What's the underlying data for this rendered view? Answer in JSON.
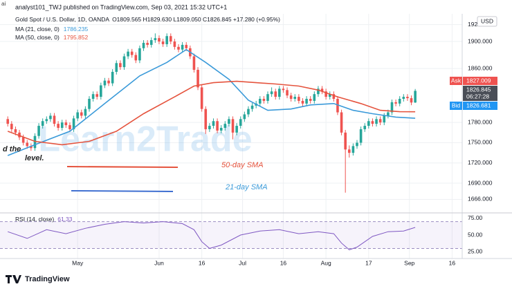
{
  "chart_data": {
    "type": "candlestick",
    "corner_text": "ai",
    "header": "analyst101_TWJ published on TradingView.com, Sep 03, 2021 15:32 UTC+1",
    "title": "Gold Spot / U.S. Dollar, 1D, OANDA",
    "ohlc_text": "O1809.565 H1829.630 L1809.050 C1826.845 +17.280 (+0.95%)",
    "currency": "USD",
    "watermark": "Learn2Trade",
    "annotations": [
      "50-day SMA",
      "21-day SMA",
      "d the",
      "level."
    ],
    "price_tags": {
      "ask_label": "Ask",
      "ask": "1827.009",
      "last": "1826.845",
      "countdown": "06:27:28",
      "bid_label": "Bid",
      "bid": "1826.681"
    },
    "up_color": "#26a69a",
    "down_color": "#ef5350",
    "xlim": [
      -2,
      117.1
    ],
    "xticks": [
      {
        "value": 18,
        "label": "May"
      },
      {
        "value": 39,
        "label": "Jun"
      },
      {
        "value": 50,
        "label": "16"
      },
      {
        "value": 60.5,
        "label": "Jul"
      },
      {
        "value": 71,
        "label": "16"
      },
      {
        "value": 82,
        "label": "Aug"
      },
      {
        "value": 93,
        "label": "17"
      },
      {
        "value": 103.5,
        "label": "Sep"
      },
      {
        "value": 114.5,
        "label": "16"
      }
    ],
    "ylim": [
      1646,
      1941
    ],
    "yticks": [
      {
        "value": 1925,
        "label": "1925.000"
      },
      {
        "value": 1900,
        "label": "1900.000"
      },
      {
        "value": 1860,
        "label": "1860.000"
      },
      {
        "value": 1780,
        "label": "1780.000"
      },
      {
        "value": 1750,
        "label": "1750.000"
      },
      {
        "value": 1720,
        "label": "1720.000"
      },
      {
        "value": 1690,
        "label": "1690.000"
      },
      {
        "value": 1666,
        "label": "1666.000"
      }
    ],
    "grid": true,
    "ohlc": [
      [
        1785,
        1789,
        1774,
        1778
      ],
      [
        1778,
        1782,
        1766,
        1770
      ],
      [
        1770,
        1774,
        1761,
        1765
      ],
      [
        1765,
        1769,
        1754,
        1758
      ],
      [
        1758,
        1762,
        1746,
        1750
      ],
      [
        1750,
        1754,
        1741,
        1745
      ],
      [
        1745,
        1749,
        1738,
        1742
      ],
      [
        1742,
        1764,
        1738,
        1760
      ],
      [
        1760,
        1779,
        1756,
        1775
      ],
      [
        1775,
        1786,
        1771,
        1782
      ],
      [
        1782,
        1789,
        1778,
        1785
      ],
      [
        1785,
        1794,
        1781,
        1790
      ],
      [
        1790,
        1794,
        1774,
        1778
      ],
      [
        1778,
        1782,
        1768,
        1772
      ],
      [
        1772,
        1784,
        1768,
        1780
      ],
      [
        1780,
        1784,
        1772,
        1776
      ],
      [
        1776,
        1780,
        1766,
        1770
      ],
      [
        1770,
        1790,
        1766,
        1786
      ],
      [
        1786,
        1799,
        1782,
        1795
      ],
      [
        1795,
        1799,
        1786,
        1790
      ],
      [
        1790,
        1804,
        1786,
        1800
      ],
      [
        1800,
        1819,
        1796,
        1815
      ],
      [
        1815,
        1826,
        1811,
        1822
      ],
      [
        1822,
        1826,
        1814,
        1818
      ],
      [
        1818,
        1839,
        1814,
        1835
      ],
      [
        1835,
        1846,
        1831,
        1842
      ],
      [
        1842,
        1846,
        1834,
        1838
      ],
      [
        1838,
        1859,
        1834,
        1855
      ],
      [
        1855,
        1872,
        1851,
        1868
      ],
      [
        1868,
        1872,
        1858,
        1862
      ],
      [
        1862,
        1882,
        1858,
        1878
      ],
      [
        1878,
        1889,
        1874,
        1885
      ],
      [
        1885,
        1889,
        1876,
        1880
      ],
      [
        1880,
        1884,
        1868,
        1872
      ],
      [
        1872,
        1894,
        1868,
        1890
      ],
      [
        1890,
        1902,
        1886,
        1898
      ],
      [
        1898,
        1902,
        1891,
        1895
      ],
      [
        1895,
        1906,
        1891,
        1902
      ],
      [
        1902,
        1912,
        1898,
        1905
      ],
      [
        1905,
        1909,
        1896,
        1900
      ],
      [
        1900,
        1904,
        1892,
        1896
      ],
      [
        1896,
        1912,
        1892,
        1908
      ],
      [
        1908,
        1912,
        1896,
        1900
      ],
      [
        1900,
        1904,
        1888,
        1892
      ],
      [
        1892,
        1896,
        1884,
        1888
      ],
      [
        1888,
        1899,
        1884,
        1895
      ],
      [
        1895,
        1899,
        1886,
        1890
      ],
      [
        1890,
        1894,
        1874,
        1878
      ],
      [
        1878,
        1882,
        1854,
        1858
      ],
      [
        1858,
        1862,
        1828,
        1832
      ],
      [
        1832,
        1836,
        1796,
        1800
      ],
      [
        1800,
        1804,
        1763,
        1770
      ],
      [
        1770,
        1779,
        1766,
        1775
      ],
      [
        1775,
        1786,
        1771,
        1782
      ],
      [
        1782,
        1786,
        1764,
        1768
      ],
      [
        1768,
        1776,
        1764,
        1772
      ],
      [
        1772,
        1782,
        1768,
        1778
      ],
      [
        1778,
        1789,
        1774,
        1785
      ],
      [
        1785,
        1789,
        1755,
        1765
      ],
      [
        1765,
        1779,
        1761,
        1775
      ],
      [
        1775,
        1789,
        1771,
        1785
      ],
      [
        1785,
        1796,
        1781,
        1792
      ],
      [
        1792,
        1804,
        1788,
        1800
      ],
      [
        1800,
        1809,
        1796,
        1805
      ],
      [
        1805,
        1812,
        1801,
        1808
      ],
      [
        1808,
        1819,
        1804,
        1815
      ],
      [
        1815,
        1819,
        1808,
        1812
      ],
      [
        1812,
        1826,
        1808,
        1822
      ],
      [
        1822,
        1832,
        1818,
        1826
      ],
      [
        1826,
        1830,
        1814,
        1818
      ],
      [
        1818,
        1834,
        1814,
        1830
      ],
      [
        1830,
        1834,
        1824,
        1828
      ],
      [
        1828,
        1832,
        1816,
        1820
      ],
      [
        1820,
        1824,
        1811,
        1815
      ],
      [
        1815,
        1822,
        1811,
        1818
      ],
      [
        1818,
        1822,
        1808,
        1812
      ],
      [
        1812,
        1816,
        1804,
        1808
      ],
      [
        1808,
        1819,
        1804,
        1815
      ],
      [
        1815,
        1819,
        1808,
        1812
      ],
      [
        1812,
        1826,
        1808,
        1822
      ],
      [
        1822,
        1834,
        1818,
        1830
      ],
      [
        1830,
        1834,
        1822,
        1826
      ],
      [
        1826,
        1830,
        1814,
        1818
      ],
      [
        1818,
        1826,
        1814,
        1822
      ],
      [
        1822,
        1826,
        1811,
        1815
      ],
      [
        1815,
        1819,
        1791,
        1795
      ],
      [
        1795,
        1799,
        1761,
        1765
      ],
      [
        1765,
        1769,
        1676,
        1740
      ],
      [
        1740,
        1746,
        1728,
        1735
      ],
      [
        1735,
        1749,
        1731,
        1745
      ],
      [
        1745,
        1754,
        1741,
        1750
      ],
      [
        1750,
        1774,
        1746,
        1770
      ],
      [
        1770,
        1779,
        1766,
        1775
      ],
      [
        1775,
        1786,
        1771,
        1782
      ],
      [
        1782,
        1786,
        1774,
        1778
      ],
      [
        1778,
        1789,
        1774,
        1785
      ],
      [
        1785,
        1789,
        1776,
        1780
      ],
      [
        1780,
        1794,
        1776,
        1790
      ],
      [
        1790,
        1799,
        1786,
        1795
      ],
      [
        1795,
        1814,
        1791,
        1810
      ],
      [
        1810,
        1814,
        1804,
        1808
      ],
      [
        1808,
        1819,
        1804,
        1815
      ],
      [
        1815,
        1822,
        1811,
        1818
      ],
      [
        1818,
        1822,
        1812,
        1816
      ],
      [
        1816,
        1820,
        1805.6,
        1809.565
      ],
      [
        1809.565,
        1829.63,
        1809.05,
        1826.845
      ]
    ],
    "series": [
      {
        "name": "MA (21, close, 0)",
        "last": "1786.235",
        "color": "#3a9ad9",
        "x": [
          0,
          7,
          16,
          25,
          34,
          41,
          46,
          51,
          57,
          62,
          67,
          73,
          78,
          84,
          89,
          94,
          100,
          105
        ],
        "values": [
          1731,
          1747,
          1767,
          1808,
          1849,
          1869,
          1888,
          1869,
          1844,
          1813,
          1798,
          1800,
          1806,
          1808,
          1798,
          1793,
          1788,
          1786.235
        ]
      },
      {
        "name": "MA (50, close, 0)",
        "last": "1795.852",
        "color": "#e5533d",
        "x": [
          0,
          7,
          14,
          21,
          28,
          35,
          43,
          48,
          53,
          59,
          64,
          69,
          75,
          80,
          85,
          91,
          96,
          101,
          105
        ],
        "values": [
          1767,
          1752,
          1747,
          1752,
          1767,
          1793,
          1818,
          1834,
          1839,
          1841,
          1839,
          1837,
          1834,
          1828,
          1818,
          1808,
          1798,
          1796,
          1795.852
        ]
      }
    ],
    "rsi": {
      "name": "RSI (14, close)",
      "last": "61.33",
      "color": "#7e57c2",
      "ylim": [
        15,
        83
      ],
      "yticks": [
        {
          "value": 75,
          "label": "75.00"
        },
        {
          "value": 50,
          "label": "50.00"
        },
        {
          "value": 25,
          "label": "25.00"
        }
      ],
      "band": [
        30,
        70
      ],
      "x": [
        0,
        5,
        10,
        15,
        20,
        25,
        30,
        35,
        40,
        45,
        48,
        50,
        52,
        55,
        60,
        65,
        70,
        75,
        80,
        84,
        86,
        88,
        90,
        94,
        98,
        102,
        105
      ],
      "values": [
        55,
        45,
        58,
        52,
        60,
        66,
        70,
        68,
        70,
        67,
        58,
        40,
        30,
        35,
        50,
        56,
        58,
        52,
        55,
        52,
        38,
        28,
        32,
        48,
        55,
        56,
        61.33
      ]
    },
    "footer": "TradingView"
  }
}
